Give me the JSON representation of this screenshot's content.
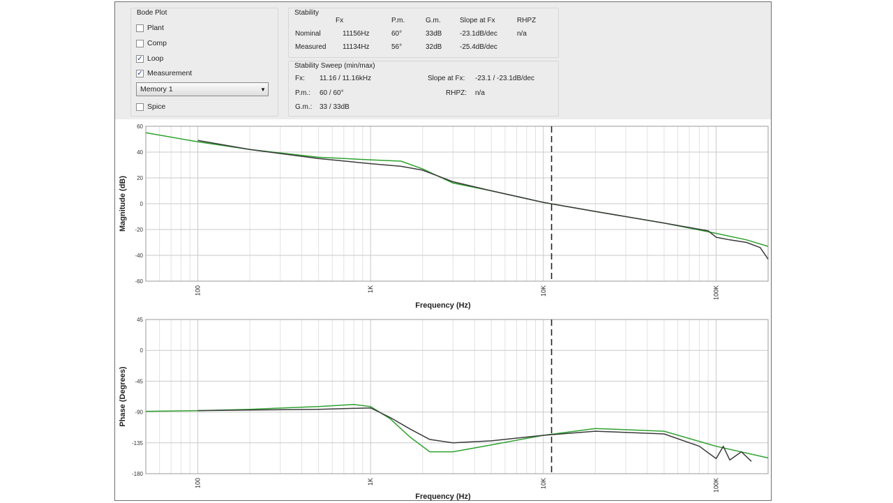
{
  "bode_panel": {
    "title": "Bode Plot",
    "checkboxes": [
      {
        "label": "Plant",
        "checked": false
      },
      {
        "label": "Comp",
        "checked": false
      },
      {
        "label": "Loop",
        "checked": true
      },
      {
        "label": "Measurement",
        "checked": true
      }
    ],
    "memory_select": {
      "value": "Memory 1"
    },
    "spice": {
      "label": "Spice",
      "checked": false
    }
  },
  "stability": {
    "title": "Stability",
    "headers": [
      "Fx",
      "P.m.",
      "G.m.",
      "Slope at Fx",
      "RHPZ"
    ],
    "rows": [
      {
        "label": "Nominal",
        "fx": "11156Hz",
        "pm": "60°",
        "gm": "33dB",
        "slope": "-23.1dB/dec",
        "rhpz": "n/a"
      },
      {
        "label": "Measured",
        "fx": "11134Hz",
        "pm": "56°",
        "gm": "32dB",
        "slope": "-25.4dB/dec",
        "rhpz": ""
      }
    ]
  },
  "sweep": {
    "title": "Stability Sweep (min/max)",
    "fx_label": "Fx:",
    "fx_value": "11.16 / 11.16kHz",
    "pm_label": "P.m.:",
    "pm_value": "60 / 60°",
    "gm_label": "G.m.:",
    "gm_value": "33 / 33dB",
    "slope_label": "Slope at Fx:",
    "slope_value": "-23.1 / -23.1dB/dec",
    "rhpz_label": "RHPZ:",
    "rhpz_value": "n/a"
  },
  "colors": {
    "model": "#2ea12e",
    "measured": "#3a3a3a",
    "marker": "#222222"
  },
  "chart_data": [
    {
      "type": "line",
      "ylabel": "Magnitude (dB)",
      "xlabel": "Frequency (Hz)",
      "x_scale": "log",
      "x_ticks": [
        {
          "value": 100,
          "label": "100"
        },
        {
          "value": 1000,
          "label": "1K"
        },
        {
          "value": 10000,
          "label": "10K"
        },
        {
          "value": 100000,
          "label": "100K"
        }
      ],
      "ylim": [
        -60,
        60
      ],
      "y_ticks": [
        "60",
        "40",
        "20",
        "0",
        "-20",
        "-40",
        "-60"
      ],
      "xlim": [
        50,
        200000
      ],
      "crossover_hz": 11156,
      "series": [
        {
          "color": "#2ea12e",
          "x": [
            50,
            100,
            200,
            500,
            1000,
            1500,
            2000,
            3000,
            5000,
            10000,
            20000,
            50000,
            100000,
            150000,
            200000
          ],
          "y": [
            55,
            48,
            42,
            36,
            34,
            33,
            27,
            16,
            10,
            1,
            -6,
            -15,
            -23,
            -28,
            -33
          ]
        },
        {
          "color": "#3a3a3a",
          "x": [
            100,
            200,
            500,
            1000,
            1500,
            2000,
            3000,
            5000,
            10000,
            20000,
            50000,
            90000,
            100000,
            120000,
            150000,
            180000,
            200000
          ],
          "y": [
            49,
            42,
            35,
            31,
            29,
            26,
            17,
            10,
            1,
            -6,
            -15,
            -21,
            -26,
            -28,
            -30,
            -34,
            -43
          ]
        }
      ]
    },
    {
      "type": "line",
      "ylabel": "Phase (Degrees)",
      "xlabel": "Frequency (Hz)",
      "x_scale": "log",
      "x_ticks": [
        {
          "value": 100,
          "label": "100"
        },
        {
          "value": 1000,
          "label": "1K"
        },
        {
          "value": 10000,
          "label": "10K"
        },
        {
          "value": 100000,
          "label": "100K"
        }
      ],
      "ylim": [
        -180,
        45
      ],
      "y_ticks": [
        "45",
        "0",
        "-45",
        "-90",
        "-135",
        "-180"
      ],
      "xlim": [
        50,
        200000
      ],
      "crossover_hz": 11156,
      "series": [
        {
          "color": "#2ea12e",
          "x": [
            50,
            100,
            200,
            500,
            800,
            1000,
            1300,
            1700,
            2200,
            3000,
            5000,
            10000,
            20000,
            50000,
            100000,
            200000
          ],
          "y": [
            -89,
            -88,
            -86,
            -82,
            -79,
            -82,
            -100,
            -127,
            -148,
            -148,
            -138,
            -124,
            -114,
            -118,
            -140,
            -157
          ]
        },
        {
          "color": "#3a3a3a",
          "x": [
            100,
            200,
            500,
            1000,
            1300,
            1700,
            2200,
            3000,
            5000,
            10000,
            20000,
            50000,
            80000,
            100000,
            110000,
            120000,
            140000,
            160000
          ],
          "y": [
            -88,
            -87,
            -86,
            -84,
            -98,
            -115,
            -130,
            -135,
            -132,
            -124,
            -118,
            -122,
            -140,
            -158,
            -140,
            -160,
            -148,
            -162
          ]
        }
      ]
    }
  ]
}
